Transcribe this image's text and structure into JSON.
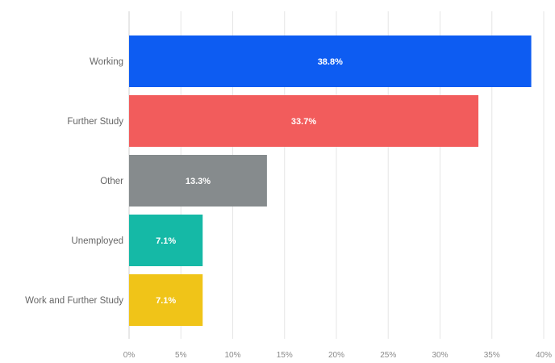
{
  "chart_data": {
    "type": "bar",
    "orientation": "horizontal",
    "categories": [
      "Working",
      "Further Study",
      "Other",
      "Unemployed",
      "Work and Further Study"
    ],
    "values": [
      38.8,
      33.7,
      13.3,
      7.1,
      7.1
    ],
    "data_labels": [
      "38.8%",
      "33.7%",
      "13.3%",
      "7.1%",
      "7.1%"
    ],
    "colors": [
      "#0d5cf2",
      "#f25c5c",
      "#868b8d",
      "#15b9a6",
      "#f0c418"
    ],
    "xlim": [
      0,
      40
    ],
    "x_ticks": [
      0,
      5,
      10,
      15,
      20,
      25,
      30,
      35,
      40
    ],
    "x_tick_labels": [
      "0%",
      "5%",
      "10%",
      "15%",
      "20%",
      "25%",
      "30%",
      "35%",
      "40%"
    ],
    "grid": true,
    "title": "",
    "xlabel": "",
    "ylabel": ""
  }
}
